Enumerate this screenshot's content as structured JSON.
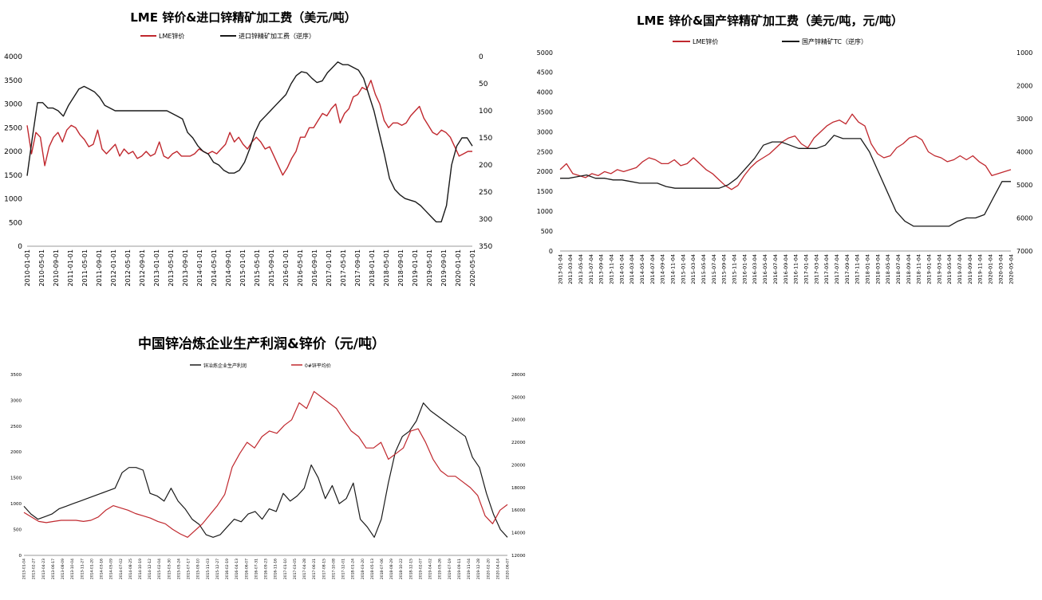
{
  "chart_data": [
    {
      "type": "line",
      "title": "LME 锌价&进口锌精矿加工费（美元/吨）",
      "legend": [
        "LME锌价",
        "进口锌精矿加工费（逆序）"
      ],
      "colors": {
        "lme": "#c0282e",
        "tc": "#1a1a1a"
      },
      "x_ticks": [
        "2010-01-01",
        "2010-05-01",
        "2010-09-01",
        "2011-01-01",
        "2011-05-01",
        "2011-09-01",
        "2012-01-01",
        "2012-05-01",
        "2012-09-01",
        "2013-01-01",
        "2013-05-01",
        "2013-09-01",
        "2014-01-01",
        "2014-05-01",
        "2014-09-01",
        "2015-01-01",
        "2015-05-01",
        "2015-09-01",
        "2016-01-01",
        "2016-05-01",
        "2016-09-01",
        "2017-01-01",
        "2017-05-01",
        "2017-09-01",
        "2018-01-01",
        "2018-05-01",
        "2018-09-01",
        "2019-01-01",
        "2019-05-01",
        "2019-09-01",
        "2020-01-01",
        "2020-05-01"
      ],
      "y_left_ticks": [
        "0",
        "500",
        "1000",
        "1500",
        "2000",
        "2500",
        "3000",
        "3500",
        "4000"
      ],
      "y_left_range": [
        0,
        4000
      ],
      "y_right_ticks": [
        "0",
        "50",
        "100",
        "150",
        "200",
        "250",
        "300",
        "350"
      ],
      "y_right_range": [
        0,
        350
      ],
      "y_right_inverted": true,
      "series": [
        {
          "name": "LME锌价",
          "axis": "left",
          "values": [
            2550,
            1950,
            2400,
            2300,
            1700,
            2100,
            2300,
            2400,
            2200,
            2450,
            2550,
            2500,
            2350,
            2250,
            2100,
            2150,
            2450,
            2050,
            1950,
            2050,
            2150,
            1900,
            2050,
            1950,
            2000,
            1850,
            1900,
            2000,
            1900,
            1950,
            2200,
            1900,
            1850,
            1950,
            2000,
            1900,
            1900,
            1900,
            1950,
            2050,
            2000,
            1950,
            2000,
            1950,
            2050,
            2150,
            2400,
            2200,
            2300,
            2150,
            2050,
            2200,
            2300,
            2200,
            2050,
            2100,
            1900,
            1700,
            1500,
            1650,
            1850,
            2000,
            2300,
            2300,
            2500,
            2500,
            2650,
            2800,
            2750,
            2900,
            3000,
            2600,
            2800,
            2900,
            3150,
            3200,
            3350,
            3300,
            3500,
            3200,
            3000,
            2650,
            2500,
            2600,
            2600,
            2550,
            2600,
            2750,
            2850,
            2950,
            2700,
            2550,
            2400,
            2350,
            2450,
            2400,
            2300,
            2100,
            1900,
            1950,
            2000,
            2000
          ]
        },
        {
          "name": "进口锌精矿加工费（逆序）",
          "axis": "right",
          "values": [
            220,
            150,
            85,
            85,
            95,
            95,
            100,
            110,
            90,
            75,
            60,
            55,
            60,
            65,
            75,
            90,
            95,
            100,
            100,
            100,
            100,
            100,
            100,
            100,
            100,
            100,
            100,
            100,
            105,
            110,
            115,
            140,
            150,
            165,
            175,
            180,
            195,
            200,
            210,
            215,
            215,
            210,
            195,
            170,
            140,
            120,
            110,
            100,
            90,
            80,
            70,
            50,
            35,
            28,
            30,
            40,
            48,
            45,
            30,
            20,
            10,
            15,
            15,
            20,
            25,
            40,
            70,
            100,
            140,
            180,
            225,
            245,
            255,
            262,
            265,
            268,
            275,
            285,
            295,
            305,
            305,
            275,
            200,
            165,
            150,
            150,
            165
          ]
        }
      ]
    },
    {
      "type": "line",
      "title": "LME 锌价&国产锌精矿加工费（美元/吨，元/吨）",
      "legend": [
        "LME锌价",
        "国产锌精矿TC（逆序）"
      ],
      "colors": {
        "lme": "#c0282e",
        "tc": "#1a1a1a"
      },
      "x_ticks": [
        "2013-01-04",
        "2013-03-04",
        "2013-05-04",
        "2013-07-04",
        "2013-09-04",
        "2013-11-04",
        "2014-01-04",
        "2014-03-04",
        "2014-05-04",
        "2014-07-04",
        "2014-09-04",
        "2014-11-04",
        "2015-01-04",
        "2015-03-04",
        "2015-05-04",
        "2015-07-04",
        "2015-09-04",
        "2015-11-04",
        "2016-01-04",
        "2016-03-04",
        "2016-05-04",
        "2016-07-04",
        "2016-09-04",
        "2016-11-04",
        "2017-01-04",
        "2017-03-04",
        "2017-05-04",
        "2017-07-04",
        "2017-09-04",
        "2017-11-04",
        "2018-01-04",
        "2018-03-04",
        "2018-05-04",
        "2018-07-04",
        "2018-09-04",
        "2018-11-04",
        "2019-01-04",
        "2019-03-04",
        "2019-05-04",
        "2019-07-04",
        "2019-09-04",
        "2019-11-04",
        "2020-01-04",
        "2020-03-04",
        "2020-05-04"
      ],
      "y_left_ticks": [
        "0",
        "500",
        "1000",
        "1500",
        "2000",
        "2500",
        "3000",
        "3500",
        "4000",
        "4500",
        "5000"
      ],
      "y_left_range": [
        0,
        5000
      ],
      "y_right_ticks": [
        "1000",
        "2000",
        "3000",
        "4000",
        "5000",
        "6000",
        "7000"
      ],
      "y_right_range": [
        1000,
        7000
      ],
      "y_right_inverted": true,
      "series": [
        {
          "name": "LME锌价",
          "axis": "left",
          "values": [
            2050,
            2200,
            1950,
            1900,
            1850,
            1950,
            1900,
            2000,
            1950,
            2050,
            2000,
            2050,
            2100,
            2250,
            2350,
            2300,
            2200,
            2200,
            2300,
            2150,
            2200,
            2350,
            2200,
            2050,
            1950,
            1800,
            1650,
            1550,
            1650,
            1900,
            2100,
            2250,
            2350,
            2450,
            2600,
            2750,
            2850,
            2900,
            2700,
            2600,
            2850,
            3000,
            3150,
            3250,
            3300,
            3200,
            3450,
            3250,
            3150,
            2700,
            2450,
            2350,
            2400,
            2600,
            2700,
            2850,
            2900,
            2800,
            2500,
            2400,
            2350,
            2250,
            2300,
            2400,
            2300,
            2400,
            2250,
            2150,
            1900,
            1950,
            2000,
            2050
          ]
        },
        {
          "name": "国产锌精矿TC（逆序）",
          "axis": "right",
          "values": [
            4800,
            4800,
            4750,
            4700,
            4800,
            4800,
            4850,
            4850,
            4900,
            4950,
            4950,
            4950,
            5050,
            5100,
            5100,
            5100,
            5100,
            5100,
            5100,
            5000,
            4800,
            4500,
            4200,
            3800,
            3700,
            3700,
            3800,
            3900,
            3900,
            3900,
            3800,
            3500,
            3600,
            3600,
            3600,
            4000,
            4600,
            5200,
            5800,
            6100,
            6250,
            6250,
            6250,
            6250,
            6250,
            6100,
            6000,
            6000,
            5900,
            5400,
            4900,
            4900
          ]
        }
      ]
    },
    {
      "type": "line",
      "title": "中国锌冶炼企业生产利润&锌价（元/吨）",
      "legend": [
        "锌冶炼企业生产利润",
        "0#锌平均价"
      ],
      "colors": {
        "profit": "#1a1a1a",
        "price": "#c0282e"
      },
      "x_ticks": [
        "2013-01-04",
        "2013-02-27",
        "2013-04-23",
        "2013-06-17",
        "2013-08-09",
        "2013-10-04",
        "2013-11-27",
        "2014-01-20",
        "2014-03-16",
        "2014-05-09",
        "2014-07-02",
        "2014-08-25",
        "2014-10-19",
        "2014-12-12",
        "2015-02-04",
        "2015-03-30",
        "2015-05-24",
        "2015-07-17",
        "2015-09-10",
        "2015-11-03",
        "2015-12-27",
        "2016-02-19",
        "2016-04-13",
        "2016-06-07",
        "2016-07-31",
        "2016-09-23",
        "2016-11-16",
        "2017-01-10",
        "2017-03-05",
        "2017-04-28",
        "2017-06-21",
        "2017-08-15",
        "2017-10-08",
        "2017-12-01",
        "2018-01-24",
        "2018-03-20",
        "2018-05-13",
        "2018-07-06",
        "2018-08-29",
        "2018-10-22",
        "2018-12-15",
        "2019-02-07",
        "2019-04-02",
        "2019-05-26",
        "2019-07-19",
        "2019-09-11",
        "2019-11-04",
        "2019-12-28",
        "2020-02-20",
        "2020-04-14",
        "2020-06-07"
      ],
      "y_left_ticks": [
        "0",
        "500",
        "1000",
        "1500",
        "2000",
        "2500",
        "3000",
        "3500"
      ],
      "y_left_range": [
        0,
        3500
      ],
      "y_right_ticks": [
        "12000",
        "14000",
        "16000",
        "18000",
        "20000",
        "22000",
        "24000",
        "26000",
        "28000"
      ],
      "y_right_range": [
        12000,
        28000
      ],
      "series": [
        {
          "name": "锌冶炼企业生产利润",
          "axis": "left",
          "values": [
            950,
            800,
            700,
            750,
            800,
            900,
            950,
            1000,
            1050,
            1100,
            1150,
            1200,
            1250,
            1300,
            1600,
            1700,
            1700,
            1650,
            1200,
            1150,
            1050,
            1300,
            1050,
            900,
            700,
            600,
            400,
            350,
            400,
            550,
            700,
            650,
            800,
            850,
            700,
            900,
            850,
            1200,
            1050,
            1150,
            1300,
            1750,
            1500,
            1100,
            1350,
            1000,
            1100,
            1400,
            700,
            550,
            350,
            700,
            1400,
            2000,
            2300,
            2400,
            2600,
            2950,
            2800,
            2700,
            2600,
            2500,
            2400,
            2300,
            1900,
            1700,
            1200,
            800,
            500,
            350
          ]
        },
        {
          "name": "0#锌平均价",
          "axis": "right",
          "values": [
            15800,
            15400,
            15000,
            14900,
            15000,
            15100,
            15100,
            15100,
            15000,
            15100,
            15400,
            16000,
            16400,
            16200,
            16000,
            15700,
            15500,
            15300,
            15000,
            14800,
            14300,
            13900,
            13600,
            14200,
            14800,
            15600,
            16400,
            17400,
            19800,
            21000,
            22000,
            21500,
            22500,
            23000,
            22800,
            23500,
            24000,
            25500,
            25000,
            26500,
            26000,
            25500,
            25000,
            24000,
            23000,
            22500,
            21500,
            21500,
            22000,
            20500,
            21000,
            21500,
            23000,
            23200,
            22000,
            20500,
            19500,
            19000,
            19000,
            18500,
            18000,
            17300,
            15500,
            14800,
            16000,
            16500
          ]
        }
      ]
    }
  ]
}
